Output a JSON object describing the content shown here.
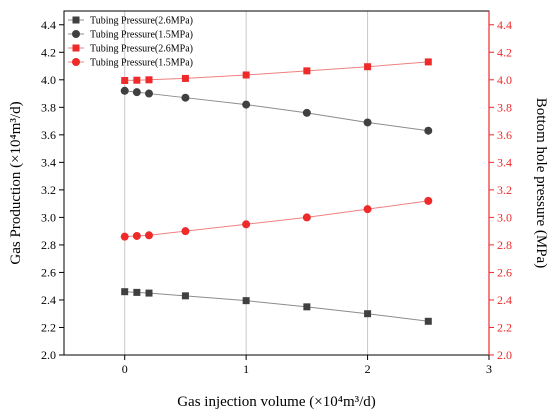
{
  "chart_data": {
    "type": "line",
    "xlabel": "Gas injection volume (×10⁴m³/d)",
    "ylabel_left": "Gas Production (×10⁴m³/d)",
    "ylabel_right": "Bottom hole pressure (MPa)",
    "xlim": [
      -0.5,
      3
    ],
    "xticks": [
      0,
      1,
      2,
      3
    ],
    "ylim": [
      2.0,
      4.5
    ],
    "yticks": [
      2.0,
      2.2,
      2.4,
      2.6,
      2.8,
      3.0,
      3.2,
      3.4,
      3.6,
      3.8,
      4.0,
      4.2,
      4.4
    ],
    "ylim_right": [
      2.0,
      4.5
    ],
    "yticks_right": [
      2.0,
      2.2,
      2.4,
      2.6,
      2.8,
      3.0,
      3.2,
      3.4,
      3.6,
      3.8,
      4.0,
      4.2,
      4.4
    ],
    "grid": true,
    "legend_position": "top-left",
    "series": [
      {
        "name": "Tubing Pressure(2.6MPa)",
        "axis": "left",
        "marker": "square",
        "color": "#404040",
        "line_color": "#8c8c8c",
        "x": [
          0,
          0.1,
          0.2,
          0.5,
          1.0,
          1.5,
          2.0,
          2.5
        ],
        "y": [
          2.46,
          2.455,
          2.45,
          2.43,
          2.395,
          2.35,
          2.3,
          2.245
        ]
      },
      {
        "name": "Tubing Pressure(1.5MPa)",
        "axis": "left",
        "marker": "circle",
        "color": "#404040",
        "line_color": "#8c8c8c",
        "x": [
          0,
          0.1,
          0.2,
          0.5,
          1.0,
          1.5,
          2.0,
          2.5
        ],
        "y": [
          3.92,
          3.91,
          3.9,
          3.87,
          3.82,
          3.76,
          3.69,
          3.63
        ]
      },
      {
        "name": "Tubing Pressure(2.6MPa)",
        "axis": "right",
        "marker": "square",
        "color": "#ee2a2a",
        "line_color": "#f08080",
        "x": [
          0,
          0.1,
          0.2,
          0.5,
          1.0,
          1.5,
          2.0,
          2.5
        ],
        "y": [
          3.995,
          3.997,
          4.0,
          4.01,
          4.035,
          4.065,
          4.095,
          4.13
        ]
      },
      {
        "name": "Tubing Pressure(1.5MPa)",
        "axis": "right",
        "marker": "circle",
        "color": "#ee2a2a",
        "line_color": "#f08080",
        "x": [
          0,
          0.1,
          0.2,
          0.5,
          1.0,
          1.5,
          2.0,
          2.5
        ],
        "y": [
          2.86,
          2.865,
          2.87,
          2.9,
          2.95,
          3.0,
          3.06,
          3.12
        ]
      }
    ],
    "colors": {
      "left_axis": "#000000",
      "right_axis": "#ee2a2a",
      "grid": "#c8c8c8"
    }
  }
}
